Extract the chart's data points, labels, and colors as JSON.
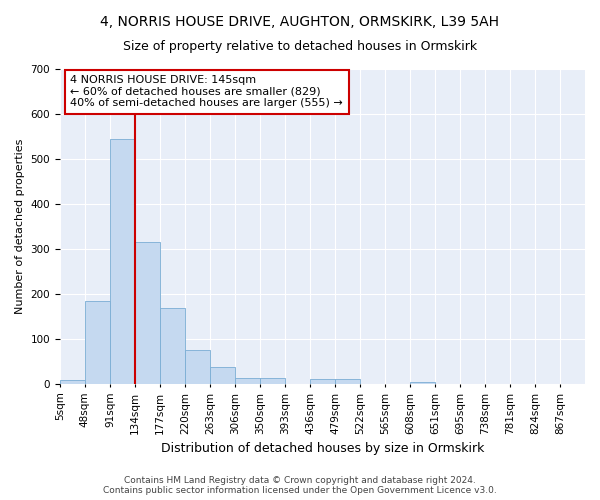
{
  "title1": "4, NORRIS HOUSE DRIVE, AUGHTON, ORMSKIRK, L39 5AH",
  "title2": "Size of property relative to detached houses in Ormskirk",
  "xlabel": "Distribution of detached houses by size in Ormskirk",
  "ylabel": "Number of detached properties",
  "bin_labels": [
    "5sqm",
    "48sqm",
    "91sqm",
    "134sqm",
    "177sqm",
    "220sqm",
    "263sqm",
    "306sqm",
    "350sqm",
    "393sqm",
    "436sqm",
    "479sqm",
    "522sqm",
    "565sqm",
    "608sqm",
    "651sqm",
    "695sqm",
    "738sqm",
    "781sqm",
    "824sqm",
    "867sqm"
  ],
  "bar_heights": [
    8,
    185,
    545,
    315,
    168,
    75,
    38,
    14,
    13,
    0,
    10,
    10,
    0,
    0,
    5,
    0,
    0,
    0,
    0,
    0,
    0
  ],
  "bar_color": "#c5d9f0",
  "bar_edge_color": "#7aadd4",
  "vline_x": 3,
  "vline_color": "#cc0000",
  "ylim_max": 700,
  "yticks": [
    0,
    100,
    200,
    300,
    400,
    500,
    600,
    700
  ],
  "annotation_text": "4 NORRIS HOUSE DRIVE: 145sqm\n← 60% of detached houses are smaller (829)\n40% of semi-detached houses are larger (555) →",
  "annotation_box_color": "#ffffff",
  "annotation_box_edge": "#cc0000",
  "bg_color": "#ffffff",
  "plot_bg_color": "#e8eef8",
  "grid_color": "#ffffff",
  "footer_text": "Contains HM Land Registry data © Crown copyright and database right 2024.\nContains public sector information licensed under the Open Government Licence v3.0.",
  "title1_fontsize": 10,
  "title2_fontsize": 9,
  "ylabel_fontsize": 8,
  "xlabel_fontsize": 9,
  "tick_fontsize": 7.5,
  "footer_fontsize": 6.5,
  "annotation_fontsize": 8
}
